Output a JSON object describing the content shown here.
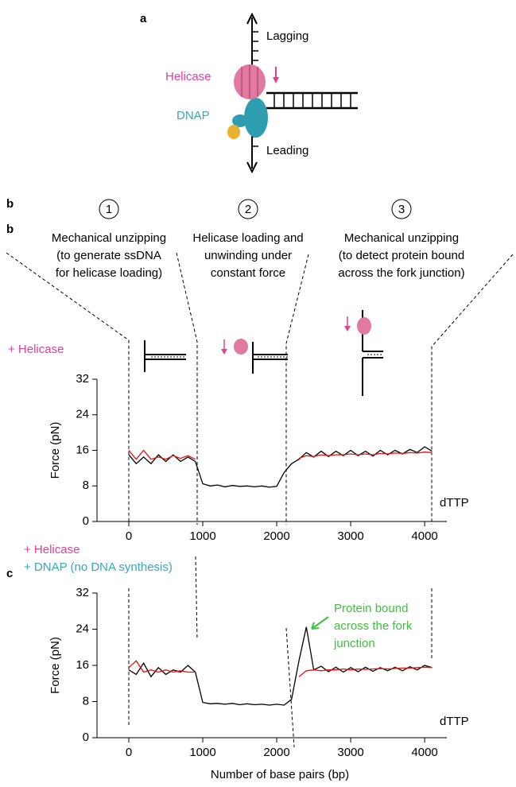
{
  "panel_a": {
    "label": "a",
    "lagging": "Lagging",
    "helicase": "Helicase",
    "dnap": "DNAP",
    "leading": "Leading"
  },
  "panel_b": {
    "label": "b",
    "steps": [
      {
        "number": "1",
        "lines": [
          "Mechanical unzipping",
          "(to generate ssDNA",
          "for helicase loading)"
        ]
      },
      {
        "number": "2",
        "lines": [
          "Helicase loading and",
          "unwinding under",
          "constant force"
        ]
      },
      {
        "number": "3",
        "lines": [
          "Mechanical unzipping",
          "(to detect protein bound",
          "across the fork junction)"
        ]
      }
    ]
  },
  "chart_data": [
    {
      "type": "line",
      "panel": "b",
      "ylabel": "Force (pN)",
      "xlim": [
        -430,
        4300
      ],
      "ylim": [
        0,
        32
      ],
      "xticks": [
        0,
        1000,
        2000,
        3000,
        4000
      ],
      "yticks": [
        0,
        8,
        16,
        24,
        32
      ],
      "annotations": [
        {
          "text": "+ Helicase",
          "color": "#e0409a"
        },
        {
          "text": "dTTP",
          "color": "#000000"
        }
      ],
      "x": [
        0,
        100,
        200,
        300,
        400,
        500,
        600,
        700,
        800,
        900,
        1000,
        1100,
        1200,
        1300,
        1400,
        1500,
        1600,
        1700,
        1800,
        1900,
        2000,
        2100,
        2200,
        2300,
        2400,
        2500,
        2600,
        2700,
        2800,
        2900,
        3000,
        3100,
        3200,
        3300,
        3400,
        3500,
        3600,
        3700,
        3800,
        3900,
        4000,
        4100
      ],
      "series": [
        {
          "color": "#000000",
          "values": [
            15,
            13,
            14.5,
            13,
            15,
            13.5,
            15,
            13.5,
            14.5,
            13.5,
            8.5,
            8,
            8.2,
            7.8,
            8.1,
            7.9,
            8,
            7.8,
            8,
            7.7,
            7.9,
            11,
            13,
            14,
            15.5,
            14.5,
            15.8,
            14.6,
            15.8,
            14.8,
            16,
            14.8,
            15.8,
            14.7,
            16,
            15,
            16,
            15.2,
            16.2,
            15.5,
            16.8,
            15.8
          ]
        },
        {
          "color": "#e8100e",
          "values": [
            16,
            14,
            16,
            14,
            14.5,
            14,
            14.8,
            14.2,
            14.8,
            14,
            null,
            null,
            null,
            null,
            null,
            null,
            null,
            null,
            null,
            null,
            null,
            null,
            null,
            14.2,
            14.8,
            14.6,
            15,
            14.8,
            15,
            15,
            15.2,
            15,
            15.2,
            15,
            15.3,
            15.2,
            15.4,
            15.3,
            15.5,
            15.4,
            15.6,
            15.5
          ]
        }
      ]
    },
    {
      "type": "line",
      "panel": "c",
      "ylabel": "Force (pN)",
      "xlabel": "Number of base pairs (bp)",
      "xlim": [
        -430,
        4300
      ],
      "ylim": [
        0,
        32
      ],
      "xticks": [
        0,
        1000,
        2000,
        3000,
        4000
      ],
      "yticks": [
        0,
        8,
        16,
        24,
        32
      ],
      "annotations": [
        {
          "text": "+ Helicase",
          "color": "#e0409a"
        },
        {
          "text": "+ DNAP (no DNA synthesis)",
          "color": "#3aa6b9"
        },
        {
          "lines": [
            "Protein bound",
            "across the fork",
            "junction"
          ],
          "color": "#3cc23c"
        },
        {
          "text": "dTTP",
          "color": "#000000"
        }
      ],
      "x": [
        0,
        100,
        200,
        300,
        400,
        500,
        600,
        700,
        800,
        900,
        1000,
        1100,
        1200,
        1300,
        1400,
        1500,
        1600,
        1700,
        1800,
        1900,
        2000,
        2100,
        2200,
        2300,
        2400,
        2500,
        2600,
        2700,
        2800,
        2900,
        3000,
        3100,
        3200,
        3300,
        3400,
        3500,
        3600,
        3700,
        3800,
        3900,
        4000,
        4100
      ],
      "series": [
        {
          "color": "#000000",
          "values": [
            15,
            14,
            16.5,
            13.5,
            15.5,
            14,
            15,
            14.5,
            16,
            14.5,
            7.8,
            7.5,
            7.6,
            7.4,
            7.6,
            7.3,
            7.5,
            7.3,
            7.4,
            7.2,
            7.4,
            7.2,
            8.5,
            17,
            24.5,
            15,
            15.8,
            14.6,
            15.6,
            14.5,
            15.5,
            14.6,
            15.6,
            14.7,
            15.5,
            14.8,
            15.6,
            14.8,
            15.7,
            15,
            16,
            15.5
          ]
        },
        {
          "color": "#e8100e",
          "values": [
            15.5,
            17,
            14.5,
            15,
            14.5,
            15,
            14.5,
            14.8,
            14.5,
            14.5,
            null,
            null,
            null,
            null,
            null,
            null,
            null,
            null,
            null,
            null,
            null,
            null,
            null,
            13.5,
            14.8,
            15,
            14.8,
            15,
            15,
            15.2,
            15,
            15.2,
            15.1,
            15.2,
            15.3,
            15.2,
            15.3,
            15.4,
            15.4,
            15.5,
            15.6,
            15.5
          ]
        }
      ]
    }
  ]
}
